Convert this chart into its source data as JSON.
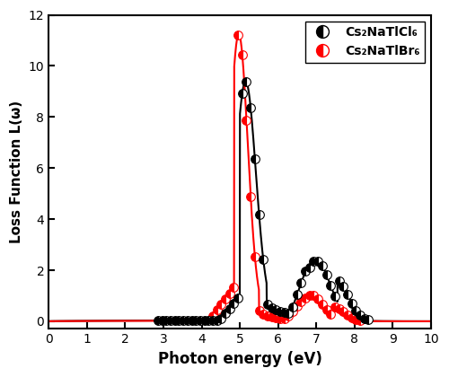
{
  "title": "",
  "xlabel": "Photon energy (eV)",
  "ylabel": "Loss Function L(ω)",
  "xlim": [
    0,
    10
  ],
  "ylim": [
    -0.3,
    12
  ],
  "yticks": [
    0,
    2,
    4,
    6,
    8,
    10,
    12
  ],
  "xticks": [
    0,
    1,
    2,
    3,
    4,
    5,
    6,
    7,
    8,
    9,
    10
  ],
  "legend_labels": [
    "Cs₂NaTlCl₆",
    "Cs₂NaTlBr₆"
  ],
  "legend_colors": [
    "black",
    "red"
  ],
  "figsize": [
    5.0,
    4.2
  ],
  "dpi": 100,
  "marker_size": 7,
  "line_width": 1.5,
  "background_color": "#ffffff",
  "scatter_step": 22
}
